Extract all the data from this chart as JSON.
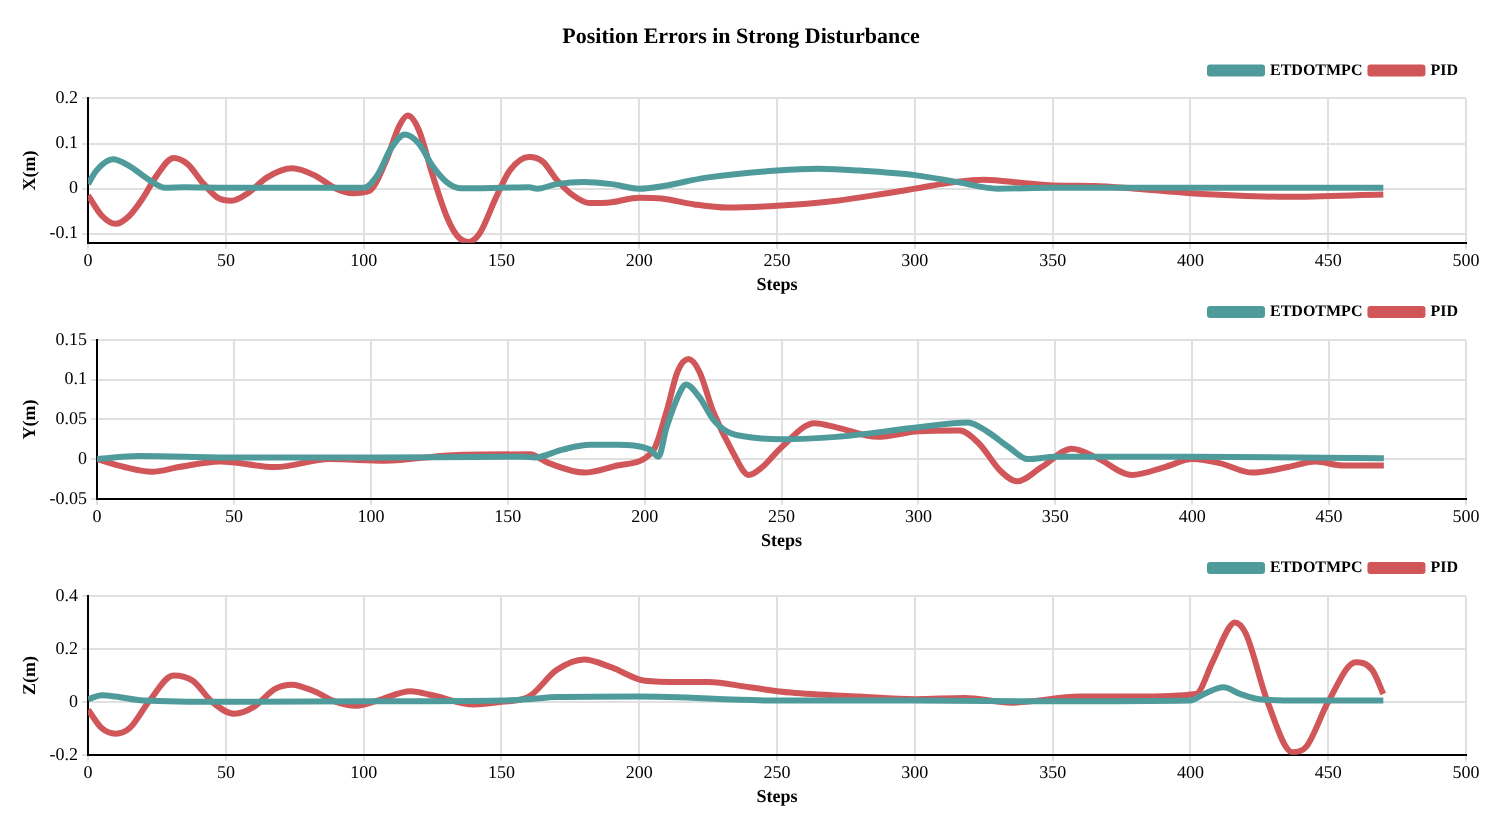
{
  "chart_data": [
    {
      "type": "line",
      "title": "Position Errors in Strong Disturbance",
      "xlabel": "Steps",
      "ylabel": "X(m)",
      "xlim": [
        0,
        500
      ],
      "xticks": [
        0,
        50,
        100,
        150,
        200,
        250,
        300,
        350,
        400,
        450,
        500
      ],
      "ylim": [
        -0.12,
        0.2
      ],
      "yticks": [
        -0.1,
        0,
        0.1,
        0.2
      ],
      "grid": true,
      "legend": "top right",
      "marker": "none",
      "series": [
        {
          "name": "ETDOTMPC",
          "color": "#4f9b9b",
          "x": [
            0,
            3,
            9,
            15,
            22,
            28,
            35,
            50,
            100,
            105,
            110,
            115,
            120,
            125,
            130,
            135,
            150,
            160,
            163,
            170,
            180,
            190,
            200,
            225,
            250,
            265,
            280,
            300,
            315,
            330,
            350,
            400,
            470
          ],
          "values": [
            0.01,
            0.04,
            0.065,
            0.05,
            0.02,
            0.002,
            0.003,
            0.002,
            0.002,
            0.03,
            0.09,
            0.12,
            0.1,
            0.05,
            0.015,
            0.001,
            0.002,
            0.003,
            0,
            0.01,
            0.015,
            0.01,
            0,
            0.025,
            0.04,
            0.044,
            0.04,
            0.03,
            0.015,
            0,
            0.002,
            0.002,
            0.002
          ]
        },
        {
          "name": "PID",
          "color": "#d0565a",
          "x": [
            0,
            5,
            10,
            15,
            20,
            25,
            31,
            36,
            42,
            47,
            52,
            58,
            65,
            74,
            82,
            90,
            96,
            102,
            108,
            113,
            116,
            120,
            125,
            130,
            134,
            138,
            142,
            148,
            153,
            160,
            165,
            170,
            176,
            182,
            190,
            200,
            208,
            220,
            232,
            250,
            270,
            290,
            300,
            315,
            325,
            340,
            350,
            365,
            380,
            400,
            435,
            470
          ],
          "values": [
            -0.015,
            -0.06,
            -0.078,
            -0.06,
            -0.02,
            0.03,
            0.068,
            0.055,
            0.01,
            -0.02,
            -0.027,
            -0.01,
            0.025,
            0.045,
            0.03,
            0,
            -0.01,
            -0.005,
            0.06,
            0.14,
            0.162,
            0.13,
            0.03,
            -0.06,
            -0.105,
            -0.118,
            -0.1,
            -0.02,
            0.04,
            0.07,
            0.06,
            0.02,
            -0.015,
            -0.032,
            -0.03,
            -0.02,
            -0.022,
            -0.035,
            -0.042,
            -0.038,
            -0.028,
            -0.01,
            0,
            0.015,
            0.02,
            0.012,
            0.007,
            0.006,
            0,
            -0.01,
            -0.018,
            -0.013
          ]
        }
      ]
    },
    {
      "type": "line",
      "xlabel": "Steps",
      "ylabel": "Y(m)",
      "xlim": [
        0,
        500
      ],
      "xticks": [
        0,
        50,
        100,
        150,
        200,
        250,
        300,
        350,
        400,
        450,
        500
      ],
      "ylim": [
        -0.05,
        0.15
      ],
      "yticks": [
        -0.05,
        0,
        0.05,
        0.1,
        0.15
      ],
      "grid": true,
      "legend": "top right",
      "marker": "none",
      "series": [
        {
          "name": "ETDOTMPC",
          "color": "#4f9b9b",
          "x": [
            0,
            15,
            50,
            100,
            155,
            160,
            170,
            180,
            190,
            202,
            205,
            208,
            213,
            215,
            220,
            225,
            230,
            240,
            250,
            270,
            300,
            318,
            325,
            333,
            340,
            350,
            400,
            470
          ],
          "values": [
            0,
            0.004,
            0.002,
            0.002,
            0.003,
            0.002,
            0.012,
            0.018,
            0.018,
            0.012,
            0.003,
            0.04,
            0.085,
            0.094,
            0.078,
            0.05,
            0.035,
            0.027,
            0.025,
            0.028,
            0.04,
            0.046,
            0.035,
            0.015,
            0,
            0.003,
            0.003,
            0.001
          ]
        },
        {
          "name": "PID",
          "color": "#d0565a",
          "x": [
            0,
            10,
            20,
            30,
            45,
            65,
            85,
            105,
            130,
            158,
            165,
            178,
            190,
            203,
            208,
            212,
            216,
            220,
            225,
            232,
            238,
            243,
            250,
            262,
            270,
            285,
            300,
            315,
            322,
            330,
            336,
            345,
            356,
            365,
            378,
            390,
            400,
            410,
            422,
            435,
            445,
            455,
            470
          ],
          "values": [
            0,
            -0.01,
            -0.016,
            -0.01,
            -0.003,
            -0.01,
            0,
            -0.002,
            0.005,
            0.006,
            -0.005,
            -0.017,
            -0.008,
            0.01,
            0.06,
            0.11,
            0.126,
            0.11,
            0.06,
            0.01,
            -0.02,
            -0.01,
            0.015,
            0.045,
            0.04,
            0.028,
            0.035,
            0.036,
            0.02,
            -0.015,
            -0.028,
            -0.01,
            0.013,
            0.002,
            -0.02,
            -0.01,
            0,
            -0.005,
            -0.017,
            -0.01,
            -0.003,
            -0.008,
            -0.008
          ]
        }
      ]
    },
    {
      "type": "line",
      "xlabel": "Steps",
      "ylabel": "Z(m)",
      "xlim": [
        0,
        500
      ],
      "xticks": [
        0,
        50,
        100,
        150,
        200,
        250,
        300,
        350,
        400,
        450,
        500
      ],
      "ylim": [
        -0.2,
        0.4
      ],
      "yticks": [
        -0.2,
        0,
        0.2,
        0.4
      ],
      "grid": true,
      "legend": "top right",
      "marker": "none",
      "series": [
        {
          "name": "ETDOTMPC",
          "color": "#4f9b9b",
          "x": [
            0,
            5,
            10,
            20,
            50,
            100,
            150,
            160,
            170,
            200,
            250,
            300,
            350,
            400,
            405,
            412,
            418,
            425,
            440,
            470
          ],
          "values": [
            0.01,
            0.025,
            0.02,
            0.005,
            0,
            0.002,
            0.005,
            0.01,
            0.018,
            0.02,
            0.005,
            0.005,
            0.002,
            0.005,
            0.03,
            0.055,
            0.03,
            0.01,
            0.005,
            0.005
          ]
        },
        {
          "name": "PID",
          "color": "#d0565a",
          "x": [
            0,
            5,
            10,
            15,
            22,
            31,
            38,
            45,
            53,
            60,
            68,
            74,
            82,
            90,
            97,
            105,
            117,
            125,
            140,
            150,
            160,
            170,
            180,
            190,
            202,
            215,
            225,
            240,
            255,
            280,
            300,
            318,
            335,
            360,
            380,
            402,
            408,
            414,
            416,
            420,
            428,
            437,
            442,
            450,
            460,
            466,
            470
          ],
          "values": [
            -0.03,
            -0.1,
            -0.12,
            -0.1,
            0,
            0.1,
            0.08,
            0,
            -0.045,
            -0.02,
            0.05,
            0.065,
            0.04,
            0,
            -0.015,
            0.005,
            0.04,
            0.025,
            -0.01,
            0,
            0.02,
            0.12,
            0.16,
            0.13,
            0.08,
            0.075,
            0.075,
            0.055,
            0.035,
            0.02,
            0.01,
            0.015,
            -0.003,
            0.02,
            0.02,
            0.03,
            0.15,
            0.28,
            0.3,
            0.26,
            0,
            -0.19,
            -0.17,
            0,
            0.15,
            0.12,
            0.03
          ]
        }
      ]
    }
  ]
}
